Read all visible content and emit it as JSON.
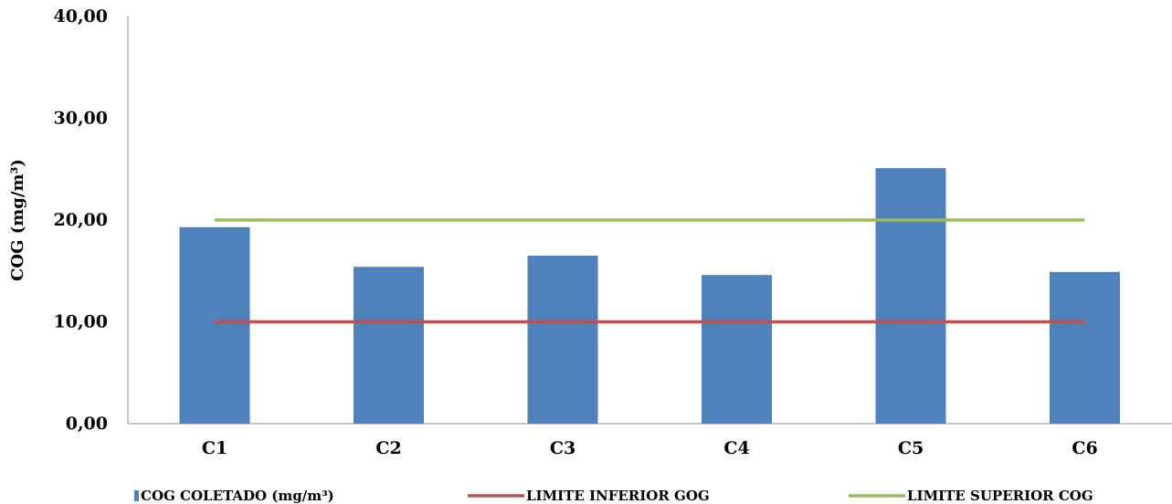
{
  "chart_data": {
    "type": "bar",
    "title": "",
    "xlabel": "",
    "ylabel": "COG (mg/m³)",
    "categories": [
      "C1",
      "C2",
      "C3",
      "C4",
      "C5",
      "C6"
    ],
    "ylim": [
      0,
      40
    ],
    "yticks": [
      0,
      10,
      20,
      30,
      40
    ],
    "ytick_labels": [
      "0,00",
      "10,00",
      "20,00",
      "30,00",
      "40,00"
    ],
    "grid": false,
    "legend_position": "bottom",
    "series": [
      {
        "name": "COG COLETADO (mg/m³)",
        "kind": "bar",
        "color": "#4F81BD",
        "values": [
          19.3,
          15.4,
          16.5,
          14.6,
          25.1,
          14.9
        ]
      },
      {
        "name": "LIMITE INFERIOR GOG",
        "kind": "line",
        "color": "#C0504D",
        "values": [
          10,
          10,
          10,
          10,
          10,
          10
        ]
      },
      {
        "name": "LIMITE SUPERIOR COG",
        "kind": "line",
        "color": "#9BBB59",
        "values": [
          20,
          20,
          20,
          20,
          20,
          20
        ]
      }
    ]
  }
}
